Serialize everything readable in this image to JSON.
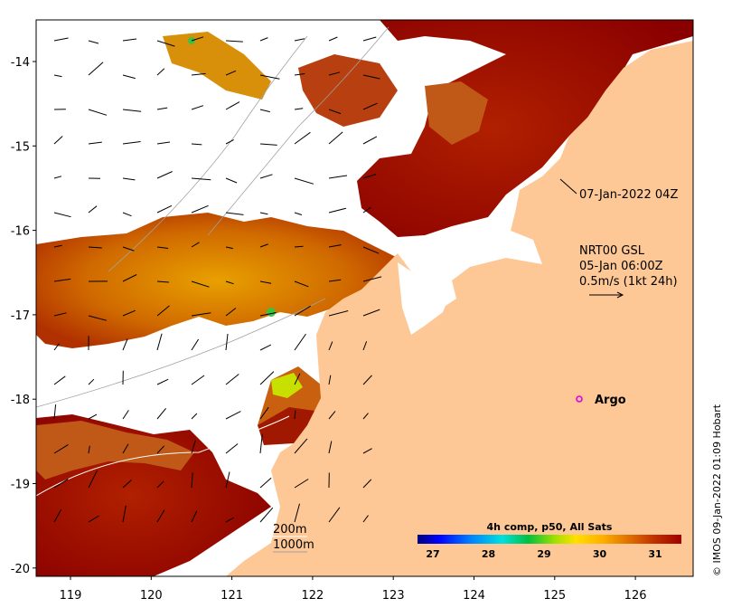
{
  "map": {
    "y_ticks": [
      "-14",
      "-15",
      "-16",
      "-17",
      "-18",
      "-19",
      "-20"
    ],
    "x_ticks": [
      "119",
      "120",
      "121",
      "122",
      "123",
      "124",
      "125",
      "126"
    ],
    "pass_label": "07-Jan-2022 04Z",
    "current_info": {
      "line1": "NRT00 GSL",
      "line2": "05-Jan 06:00Z",
      "line3": "0.5m/s (1kt 24h)"
    },
    "argo_label": "Argo",
    "isobaths": {
      "line1": "200m",
      "line2": "1000m"
    },
    "credit": "© IMOS 09-Jan-2022 01:09 Hobart",
    "colors": {
      "land": "#fdc896",
      "no_data": "#ffffff",
      "argo_marker": "#e000e0"
    }
  },
  "colorbar": {
    "title": "4h comp, p50, All Sats",
    "ticks": [
      "27",
      "28",
      "29",
      "30",
      "31"
    ],
    "stops": [
      "#00007f",
      "#0000ff",
      "#0080ff",
      "#00e0e0",
      "#00c040",
      "#a0e000",
      "#ffe000",
      "#ffb000",
      "#e07000",
      "#c03000",
      "#a00000"
    ]
  }
}
